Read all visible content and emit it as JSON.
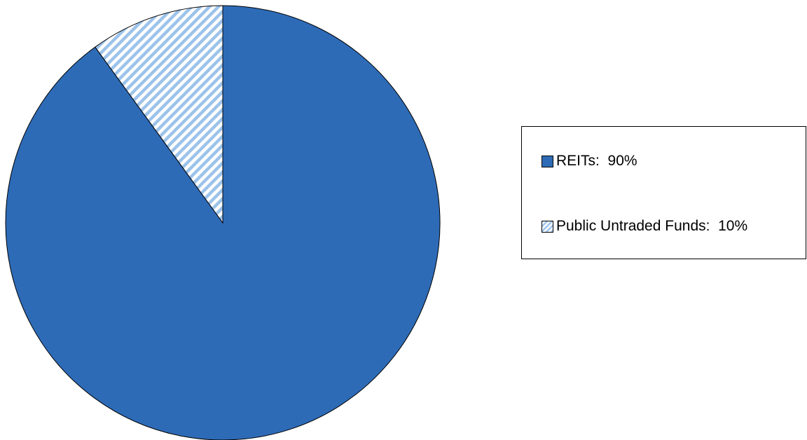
{
  "chart_data": {
    "type": "pie",
    "slices": [
      {
        "label": "REITs",
        "value": 90,
        "display": "REITs:  90%",
        "color": "#2e6bb7",
        "fill": "solid"
      },
      {
        "label": "Public Untraded Funds",
        "value": 10,
        "display": "Public Untraded Funds:  10%",
        "color": "#9cc3ea",
        "fill": "diagonal-stripes"
      }
    ],
    "start_angle": "12 o'clock",
    "direction": "clockwise",
    "legend_position": "right"
  },
  "colors": {
    "primary": "#2e6bb7",
    "stripe": "#9cc3ea",
    "outline": "#000000"
  }
}
